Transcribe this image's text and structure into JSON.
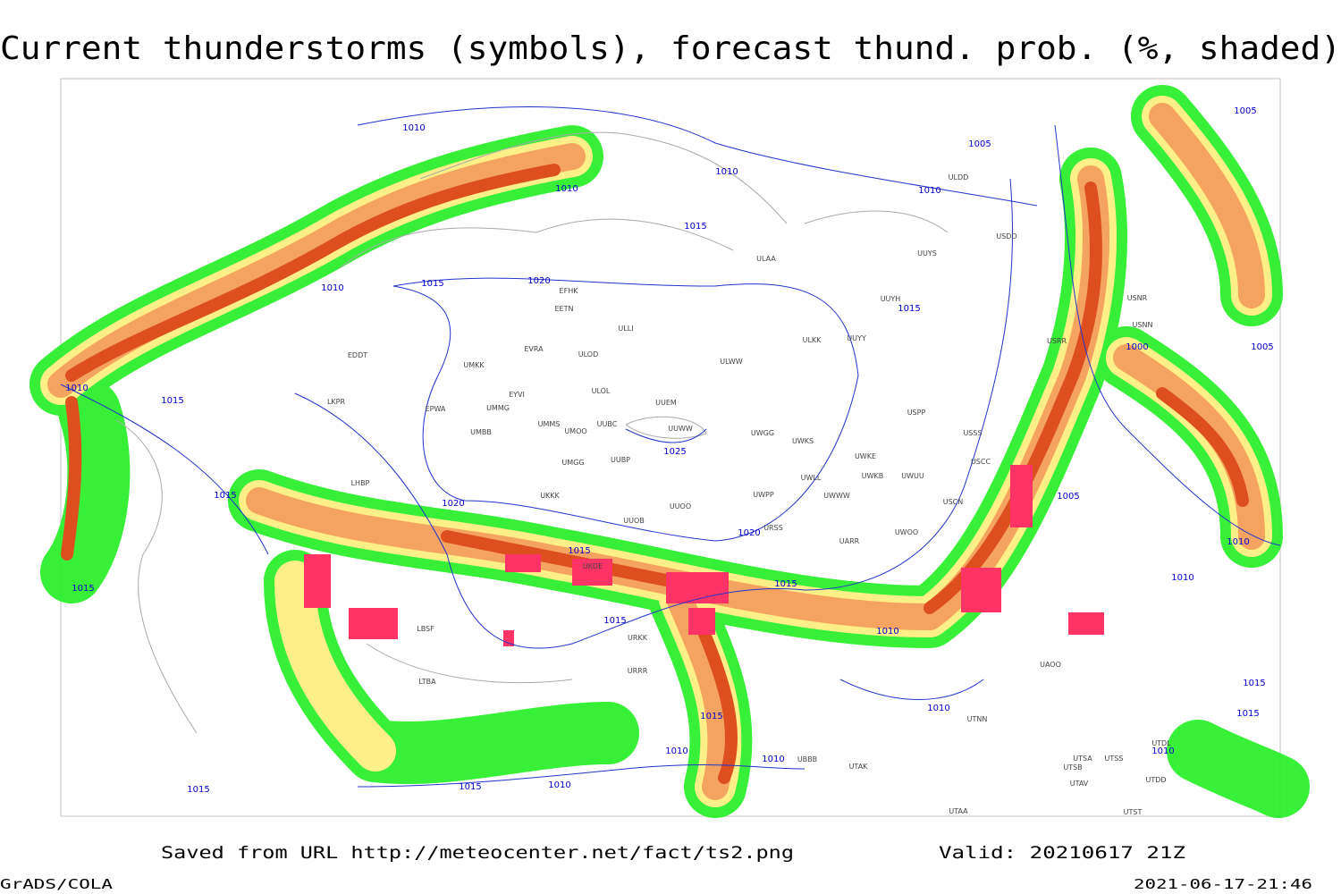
{
  "header": {
    "title": "Current thunderstorms (symbols), forecast thund. prob. (%, shaded)"
  },
  "map": {
    "isobar_labels": [
      1010,
      1005,
      1010,
      1010,
      1010,
      1015,
      1015,
      1020,
      1010,
      1015,
      1000,
      1005,
      1005,
      1010,
      1015,
      1025,
      1015,
      1020,
      1005,
      1020,
      1015,
      1010,
      1010,
      1015,
      1015,
      1015,
      1010,
      1010,
      1015,
      1010,
      1010,
      1015,
      1015,
      1010,
      1015,
      1015,
      1010
    ],
    "station_labels": [
      "EFHK",
      "EETN",
      "ULLI",
      "EVRA",
      "ULOD",
      "UMKK",
      "ULOL",
      "UUEM",
      "EYVI",
      "UMMG",
      "EPWA",
      "UMMS",
      "UMOO",
      "UUBC",
      "UUWW",
      "UWGG",
      "UWKS",
      "UMBB",
      "UMGG",
      "UUBP",
      "UWKE",
      "UWKB",
      "UWUU",
      "UWLL",
      "UWWW",
      "UWPP",
      "UKKK",
      "UUOO",
      "UUOB",
      "URSS",
      "UWOO",
      "UARR",
      "UKDE",
      "URKK",
      "URRR",
      "UTAK",
      "UBBB",
      "UTAA",
      "UTNN",
      "UAOO",
      "USCN",
      "USSS",
      "USCC",
      "USRR",
      "USNN",
      "USNR",
      "ULAA",
      "UUYY",
      "ULKK",
      "UUYH",
      "UUYS",
      "ULDD",
      "USDD",
      "USPP",
      "ULWW",
      "EDDT",
      "LKPR",
      "LHBP",
      "LBSF",
      "LTBA",
      "UTSA",
      "UTSB",
      "UTSS",
      "UTAV",
      "UTST",
      "UTDL",
      "UTDD"
    ]
  },
  "footer": {
    "source": "Saved from URL  http://meteocenter.net/fact/ts2.png",
    "valid": "Valid: 20210617 21Z",
    "credit": "GrADS/COLA",
    "timestamp": "2021-06-17-21:46"
  }
}
